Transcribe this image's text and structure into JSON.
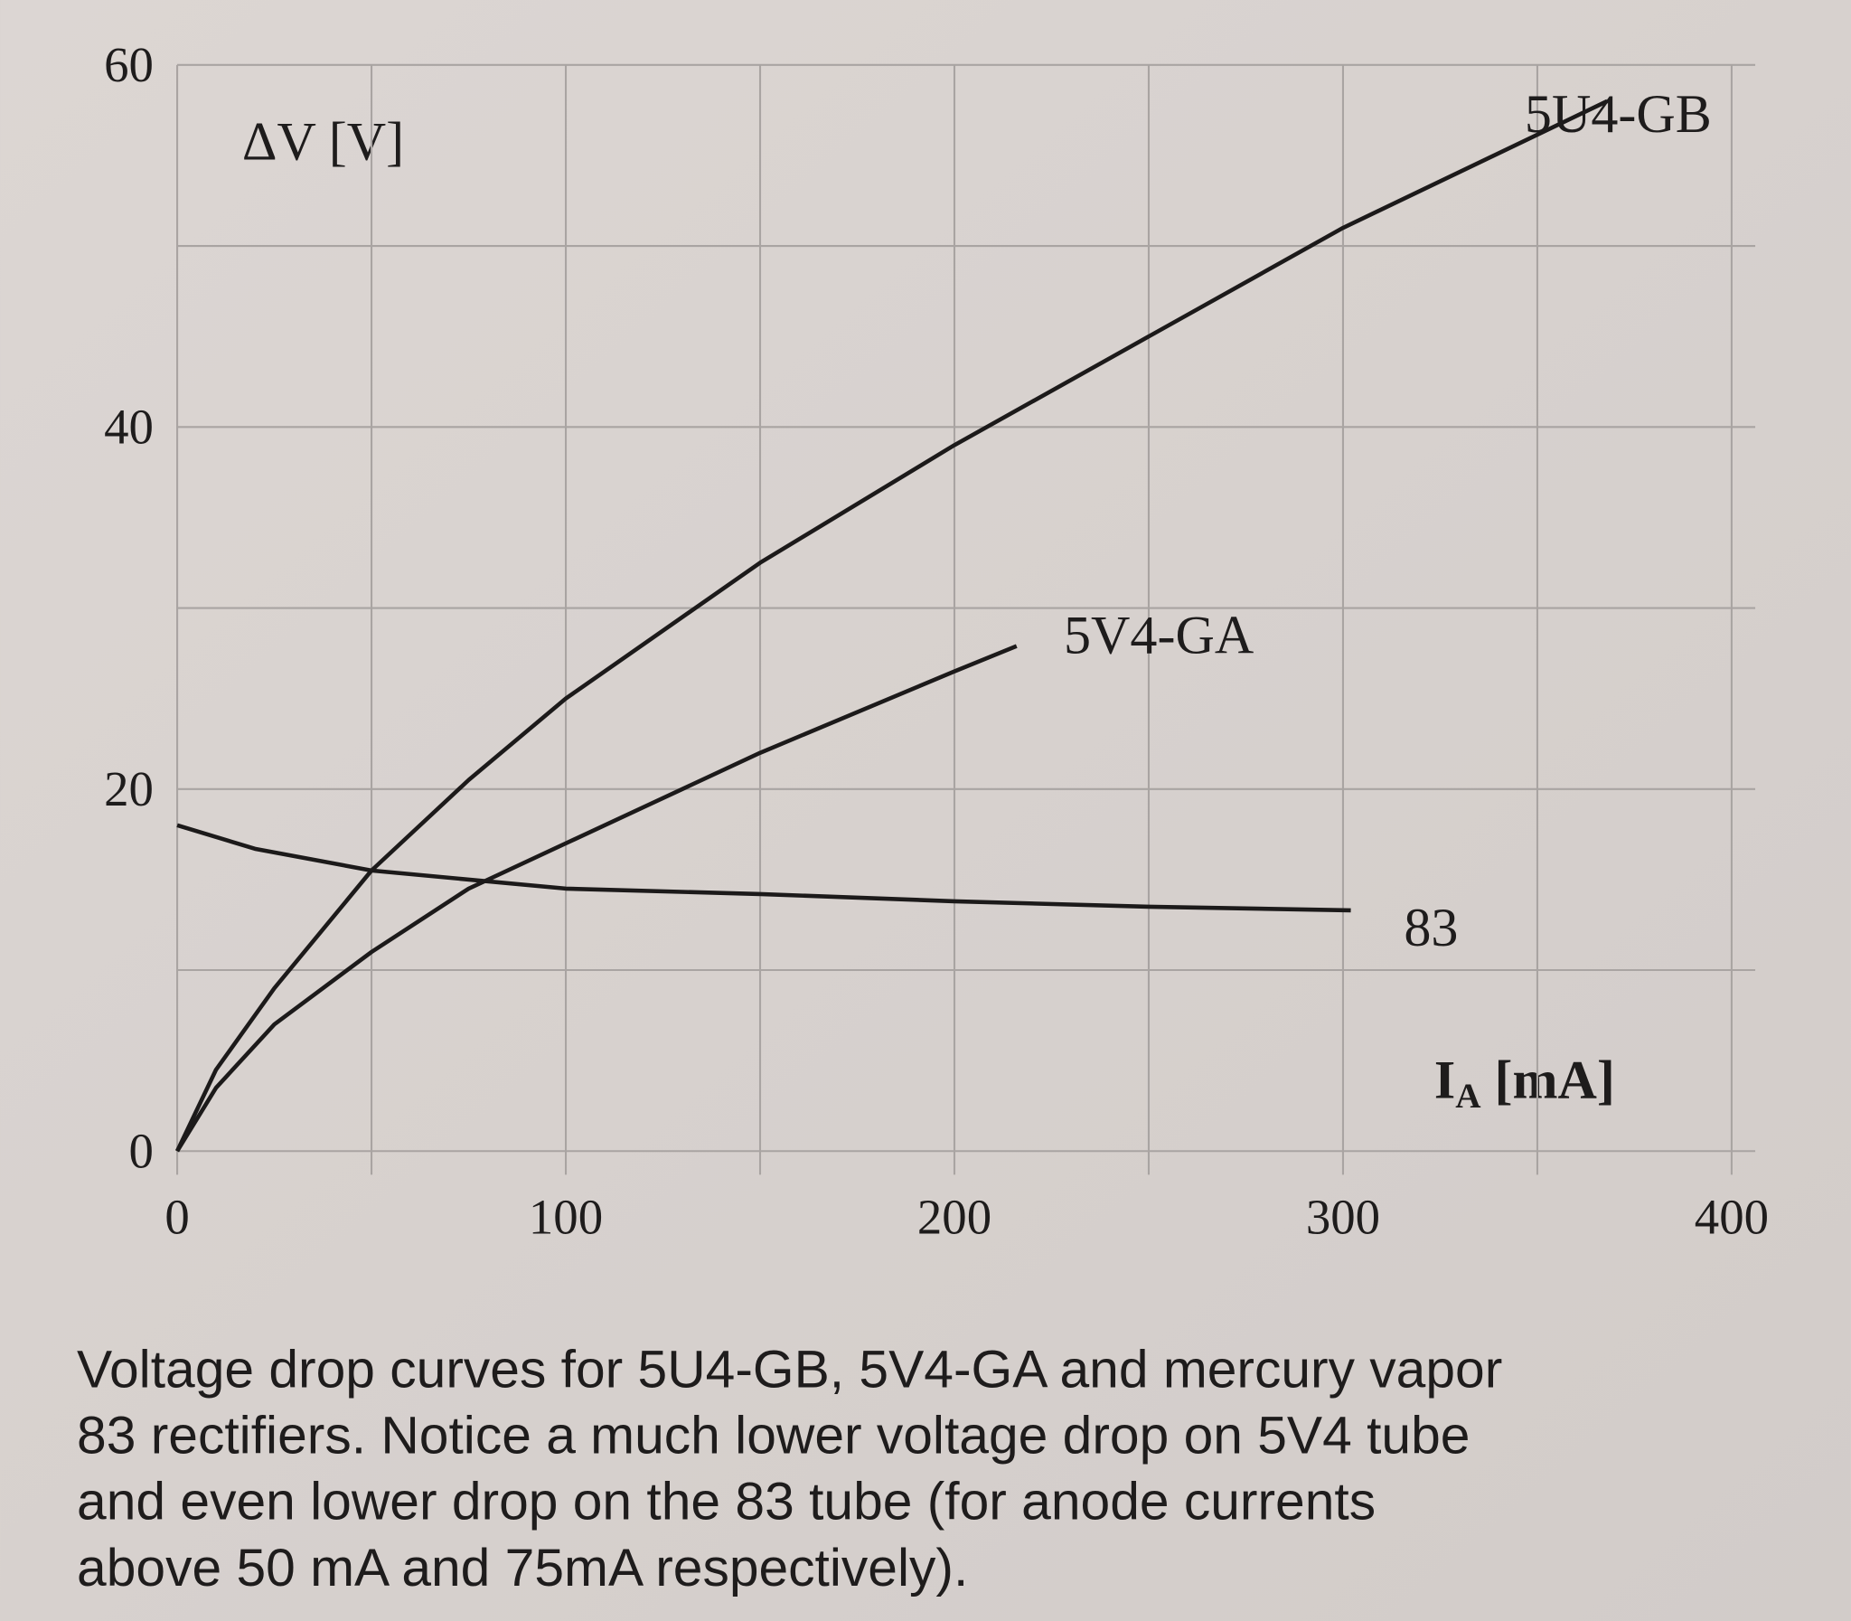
{
  "chart_data": {
    "type": "line",
    "ylabel": "ΔV [V]",
    "xlabel": {
      "text": "I",
      "subscript": "A",
      "suffix": " [mA]"
    },
    "xlim": [
      0,
      400
    ],
    "xticks": [
      0,
      100,
      200,
      300,
      400
    ],
    "ylim": [
      0,
      60
    ],
    "yticks": [
      0,
      20,
      40,
      60
    ],
    "x_grid": [
      0,
      50,
      100,
      150,
      200,
      250,
      300,
      350,
      400
    ],
    "y_grid": [
      0,
      10,
      20,
      30,
      40,
      50,
      60
    ],
    "grid": true,
    "series": [
      {
        "name": "5U4-GB",
        "color": "#1c1a1a",
        "x": [
          0,
          10,
          25,
          50,
          75,
          100,
          150,
          200,
          250,
          300,
          368
        ],
        "values": [
          0,
          4.5,
          9,
          15.5,
          20.5,
          25,
          32.5,
          39,
          45,
          51,
          58
        ]
      },
      {
        "name": "5V4-GA",
        "color": "#1c1a1a",
        "x": [
          0,
          10,
          25,
          50,
          75,
          100,
          150,
          200,
          216
        ],
        "values": [
          0,
          3.5,
          7,
          11,
          14.5,
          17,
          22,
          26.5,
          27.9
        ]
      },
      {
        "name": "83",
        "color": "#1c1a1a",
        "x": [
          0,
          20,
          50,
          100,
          150,
          200,
          250,
          302
        ],
        "values": [
          18,
          16.7,
          15.5,
          14.5,
          14.2,
          13.8,
          13.5,
          13.3
        ]
      }
    ],
    "caption": [
      "Voltage drop curves for 5U4-GB, 5V4-GA and mercury vapor",
      "83 rectifiers. Notice a much lower voltage drop on 5V4 tube",
      "and even lower drop on the 83 tube (for anode currents",
      "above 50 mA and 75mA respectively)."
    ]
  }
}
